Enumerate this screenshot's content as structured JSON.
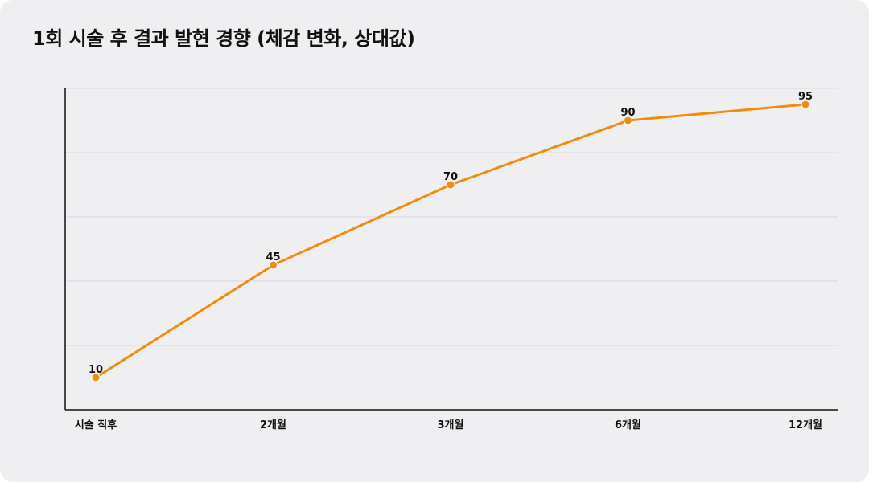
{
  "title": "1회 시술 후 결과 발현 경향 (체감 변화, 상대값)",
  "colors": {
    "line": "#f28c0f",
    "marker": "#f28c0f",
    "background": "#efeff2",
    "grid": "#d9d9de",
    "axis": "#111111"
  },
  "chart_data": {
    "type": "line",
    "title": "1회 시술 후 결과 발현 경향 (체감 변화, 상대값)",
    "categories": [
      "시술 직후",
      "2개월",
      "3개월",
      "6개월",
      "12개월"
    ],
    "series": [
      {
        "values": [
          10,
          45,
          70,
          90,
          95
        ]
      }
    ],
    "ylim": [
      0,
      100
    ],
    "ygrid": [
      20,
      40,
      60,
      80,
      100
    ],
    "grid": true,
    "legend": "none",
    "xlabel": "",
    "ylabel": ""
  }
}
